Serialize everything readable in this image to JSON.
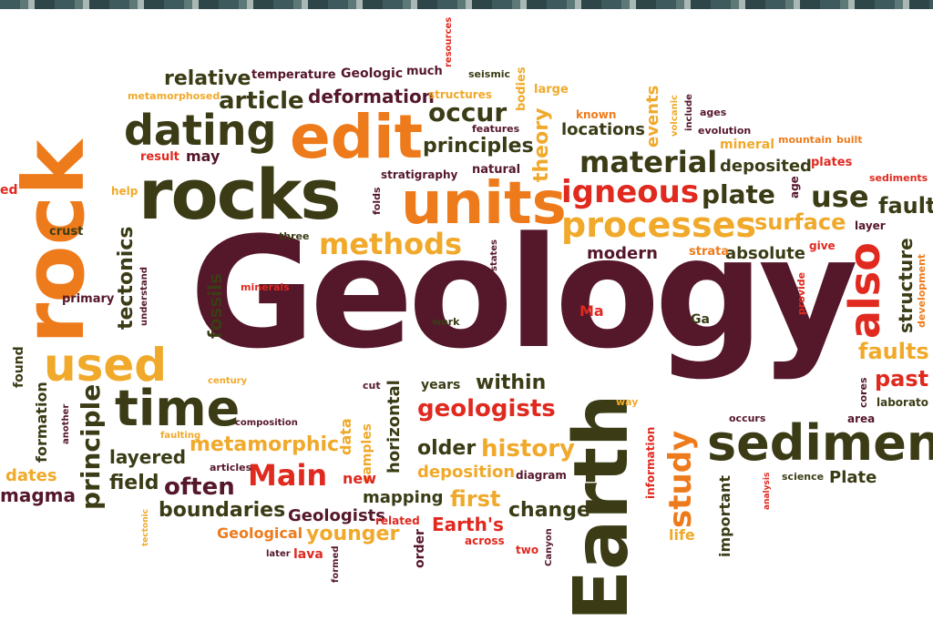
{
  "title": "Geology",
  "palette": {
    "maroon": "#55172a",
    "olive": "#3b3c16",
    "orange": "#ee7b1b",
    "yellow": "#f0a92a",
    "red": "#e0291f"
  },
  "words": {
    "geology": "Geology",
    "rock": "rock",
    "rocks": "rocks",
    "earth": "Earth",
    "units": "units",
    "edit": "edit",
    "sedimen": "sedimen",
    "time": "time",
    "dating": "dating",
    "used": "used",
    "processes": "processes",
    "also": "also",
    "igneous": "igneous",
    "material": "material",
    "methods": "methods",
    "main": "Main",
    "plate": "plate",
    "use": "use",
    "study": "study",
    "history": "history",
    "geologists": "geologists",
    "occur": "occur",
    "principles": "principles",
    "article": "article",
    "relative": "relative",
    "deformation": "deformation",
    "metamorphic": "metamorphic",
    "boundaries": "boundaries",
    "often": "often",
    "principle": "principle",
    "tectonics": "tectonics",
    "fossils": "fossils",
    "theory": "theory",
    "events": "events",
    "surface": "surface",
    "fault": "fault",
    "structure": "structure",
    "faults": "faults",
    "past": "past",
    "locations": "locations",
    "deposited": "deposited",
    "modern": "modern",
    "absolute": "absolute",
    "within": "within",
    "older": "older",
    "deposition": "deposition",
    "first": "first",
    "mapping": "mapping",
    "change": "change",
    "earths": "Earth's",
    "younger": "younger",
    "geologists_cap": "Geologists",
    "geological": "Geological",
    "magma": "magma",
    "dates": "dates",
    "field": "field",
    "layered": "layered",
    "formation": "formation",
    "found": "found",
    "primary": "primary",
    "crust": "crust",
    "help": "help",
    "temperature": "temperature",
    "geologic": "Geologic",
    "much": "much",
    "seismic": "seismic",
    "resources": "resources",
    "structures": "structures",
    "bodies": "bodies",
    "large": "large",
    "features": "features",
    "natural": "natural",
    "stratigraphy": "stratigraphy",
    "result": "result",
    "may": "may",
    "metamorphosed": "metamorphosed",
    "known": "known",
    "volcanic": "volcanic",
    "include": "include",
    "ages": "ages",
    "evolution": "evolution",
    "mineral": "mineral",
    "mountain": "mountain",
    "built": "built",
    "plates": "plates",
    "sediments": "sediments",
    "age": "age",
    "layer": "layer",
    "give": "give",
    "strata": "strata",
    "provide": "provide",
    "development": "development",
    "three": "three",
    "folds": "folds",
    "states": "states",
    "understand": "understand",
    "minerals": "minerals",
    "work": "work",
    "ma": "Ma",
    "ga": "Ga",
    "century": "century",
    "cut": "cut",
    "years": "years",
    "horizontal": "horizontal",
    "data": "data",
    "samples": "samples",
    "new": "new",
    "composition": "composition",
    "articles": "articles",
    "faulting": "faulting",
    "another": "another",
    "tectonic": "tectonic",
    "related": "related",
    "lava": "lava",
    "later": "later",
    "formed": "formed",
    "order": "order",
    "across": "across",
    "two": "two",
    "canyon": "Canyon",
    "information": "information",
    "important": "important",
    "life": "life",
    "analysis": "analysis",
    "science": "science",
    "plate_cap": "Plate",
    "occurs": "occurs",
    "area": "area",
    "cores": "cores",
    "laborato": "laborato",
    "way": "way",
    "diagram": "diagram",
    "ed": "ed"
  }
}
